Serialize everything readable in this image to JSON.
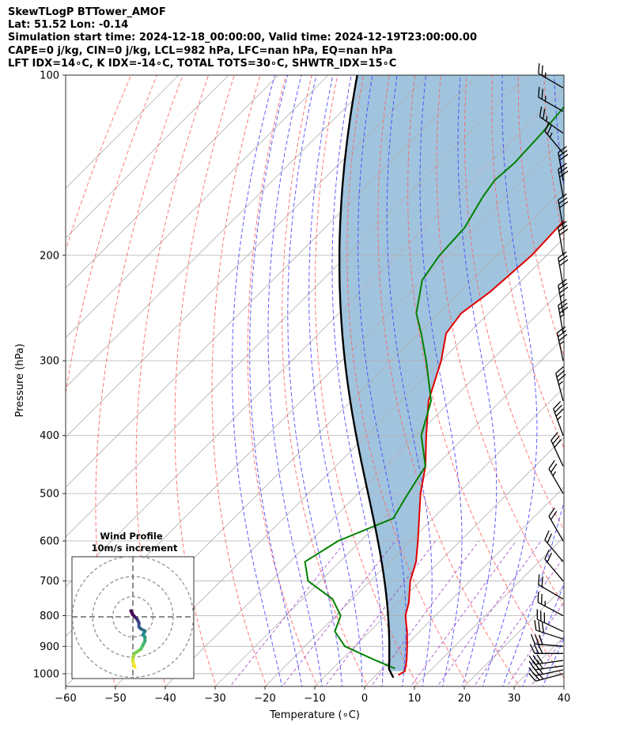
{
  "header": {
    "line1": "SkewTLogP BTTower_AMOF",
    "line2": "Lat: 51.52   Lon: -0.14",
    "line3": "Simulation start time: 2024-12-18_00:00:00, Valid time: 2024-12-19T23:00:00.00",
    "line4": "CAPE=0 j/kg, CIN=0 j/kg, LCL=982 hPa, LFC=nan hPa, EQ=nan hPa",
    "line5": "LFT IDX=14∘C, K IDX=-14∘C, TOTAL TOTS=30∘C, SHWTR_IDX=15∘C"
  },
  "chart_data": {
    "type": "skewt",
    "xlabel": "Temperature (∘C)",
    "ylabel": "Pressure (hPa)",
    "xlim": [
      -60,
      40
    ],
    "ylim": [
      1050,
      100
    ],
    "xticks": [
      "−60",
      "−50",
      "−40",
      "−30",
      "−20",
      "−10",
      "0",
      "10",
      "20",
      "30",
      "40"
    ],
    "xtick_values": [
      -60,
      -50,
      -40,
      -30,
      -20,
      -10,
      0,
      10,
      20,
      30,
      40
    ],
    "yticks": [
      "100",
      "200",
      "300",
      "400",
      "500",
      "600",
      "700",
      "800",
      "900",
      "1000"
    ],
    "ytick_values": [
      100,
      200,
      300,
      400,
      500,
      600,
      700,
      800,
      900,
      1000
    ],
    "temperature": {
      "name": "Temperature",
      "color": "#e00000",
      "points": [
        [
          1005,
          4.5
        ],
        [
          990,
          5.0
        ],
        [
          950,
          3.2
        ],
        [
          900,
          0.5
        ],
        [
          850,
          -2.5
        ],
        [
          800,
          -6.0
        ],
        [
          760,
          -8.0
        ],
        [
          700,
          -12.0
        ],
        [
          650,
          -14.7
        ],
        [
          600,
          -18.5
        ],
        [
          550,
          -22.8
        ],
        [
          500,
          -27.5
        ],
        [
          450,
          -32.0
        ],
        [
          400,
          -38.0
        ],
        [
          350,
          -44.5
        ],
        [
          300,
          -50.0
        ],
        [
          270,
          -54.5
        ],
        [
          250,
          -55.5
        ],
        [
          230,
          -54.0
        ],
        [
          200,
          -53.0
        ],
        [
          175,
          -53.5
        ],
        [
          150,
          -54.0
        ],
        [
          135,
          -53.0
        ],
        [
          125,
          -51.0
        ],
        [
          115,
          -51.5
        ],
        [
          100,
          -52.5
        ]
      ]
    },
    "dewpoint": {
      "name": "Dewpoint",
      "color": "#008000",
      "points": [
        [
          980,
          2.5
        ],
        [
          950,
          -3.0
        ],
        [
          900,
          -12.0
        ],
        [
          850,
          -17.0
        ],
        [
          800,
          -19.0
        ],
        [
          750,
          -24.0
        ],
        [
          700,
          -32.5
        ],
        [
          650,
          -37.0
        ],
        [
          600,
          -34.5
        ],
        [
          550,
          -28.0
        ],
        [
          500,
          -30.0
        ],
        [
          450,
          -32.0
        ],
        [
          400,
          -39.0
        ],
        [
          350,
          -44.0
        ],
        [
          300,
          -53.0
        ],
        [
          270,
          -59.5
        ],
        [
          250,
          -64.5
        ],
        [
          220,
          -70.0
        ],
        [
          200,
          -71.5
        ],
        [
          180,
          -72.0
        ],
        [
          160,
          -74.5
        ],
        [
          150,
          -75.5
        ],
        [
          140,
          -75.0
        ],
        [
          125,
          -75.5
        ],
        [
          110,
          -76.5
        ],
        [
          100,
          -78.0
        ]
      ]
    },
    "parcel": {
      "name": "Parcel profile",
      "color": "#000000",
      "start_pressure_hPa": 1015,
      "start_temperature_C": 4.0,
      "lcl_hPa": 982,
      "top_hPa": 100
    },
    "shaded_region": {
      "label": "CIN area between parcel and temperature",
      "color": "#a0c4de"
    },
    "dry_adiabats_theta_K": [
      200,
      210,
      220,
      230,
      240,
      250,
      260,
      270,
      280,
      290,
      300,
      310,
      320,
      330,
      340,
      350,
      360,
      370,
      380,
      390,
      400,
      410,
      420,
      430,
      440,
      450,
      460
    ],
    "moist_adiabats_start_C": [
      -16,
      -12,
      -8,
      -4,
      0,
      4,
      8,
      12,
      16,
      20,
      24,
      28,
      32,
      36
    ],
    "mixing_ratios": [
      0.0004,
      0.001,
      0.002,
      0.004,
      0.007,
      0.01,
      0.016,
      0.024,
      0.032
    ],
    "wind_barbs": [
      {
        "p": 1000,
        "speed_kt": 25,
        "dir_deg": 255
      },
      {
        "p": 985,
        "speed_kt": 30,
        "dir_deg": 258
      },
      {
        "p": 970,
        "speed_kt": 30,
        "dir_deg": 262
      },
      {
        "p": 950,
        "speed_kt": 30,
        "dir_deg": 262
      },
      {
        "p": 925,
        "speed_kt": 30,
        "dir_deg": 270
      },
      {
        "p": 900,
        "speed_kt": 30,
        "dir_deg": 275
      },
      {
        "p": 875,
        "speed_kt": 30,
        "dir_deg": 288
      },
      {
        "p": 850,
        "speed_kt": 30,
        "dir_deg": 295
      },
      {
        "p": 800,
        "speed_kt": 25,
        "dir_deg": 298
      },
      {
        "p": 750,
        "speed_kt": 20,
        "dir_deg": 300
      },
      {
        "p": 700,
        "speed_kt": 20,
        "dir_deg": 320
      },
      {
        "p": 650,
        "speed_kt": 20,
        "dir_deg": 320
      },
      {
        "p": 600,
        "speed_kt": 20,
        "dir_deg": 330
      },
      {
        "p": 500,
        "speed_kt": 25,
        "dir_deg": 330
      },
      {
        "p": 450,
        "speed_kt": 30,
        "dir_deg": 335
      },
      {
        "p": 400,
        "speed_kt": 35,
        "dir_deg": 340
      },
      {
        "p": 350,
        "speed_kt": 35,
        "dir_deg": 345
      },
      {
        "p": 300,
        "speed_kt": 35,
        "dir_deg": 348
      },
      {
        "p": 270,
        "speed_kt": 35,
        "dir_deg": 350
      },
      {
        "p": 250,
        "speed_kt": 35,
        "dir_deg": 350
      },
      {
        "p": 225,
        "speed_kt": 30,
        "dir_deg": 350
      },
      {
        "p": 200,
        "speed_kt": 30,
        "dir_deg": 350
      },
      {
        "p": 180,
        "speed_kt": 30,
        "dir_deg": 350
      },
      {
        "p": 160,
        "speed_kt": 30,
        "dir_deg": 350
      },
      {
        "p": 150,
        "speed_kt": 30,
        "dir_deg": 350
      },
      {
        "p": 135,
        "speed_kt": 25,
        "dir_deg": 320
      },
      {
        "p": 125,
        "speed_kt": 25,
        "dir_deg": 305
      },
      {
        "p": 115,
        "speed_kt": 25,
        "dir_deg": 300
      },
      {
        "p": 105,
        "speed_kt": 25,
        "dir_deg": 300
      }
    ],
    "hodograph": {
      "title": "Wind Profile",
      "subtitle": "10m/s increment",
      "ring_increment_ms": 10,
      "ring_count": 3,
      "points_uv_ms": [
        [
          1,
          -25
        ],
        [
          0,
          -22
        ],
        [
          0,
          -20
        ],
        [
          1,
          -18
        ],
        [
          4,
          -16
        ],
        [
          5,
          -14
        ],
        [
          6,
          -12
        ],
        [
          6,
          -10
        ],
        [
          5,
          -9
        ],
        [
          6,
          -7
        ],
        [
          4,
          -6
        ],
        [
          3,
          -5
        ],
        [
          3,
          -3
        ],
        [
          2,
          -1
        ],
        [
          1,
          0
        ],
        [
          0,
          1
        ],
        [
          -1,
          3
        ]
      ]
    }
  }
}
